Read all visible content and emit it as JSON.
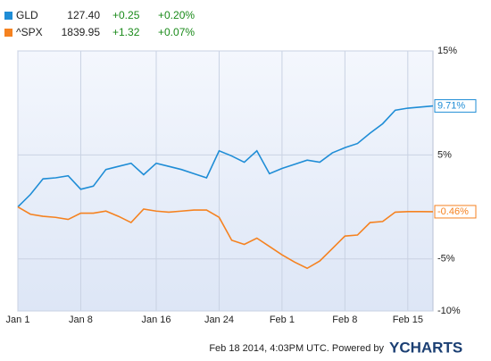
{
  "chart_data": {
    "type": "line",
    "legend": [
      {
        "price": "127.40",
        "change": "+0.25",
        "percent": "+0.20%"
      },
      {
        "price": "1839.95",
        "change": "+1.32",
        "percent": "+0.07%"
      }
    ],
    "categories": [
      "Jan 1",
      null,
      null,
      null,
      null,
      "Jan 8",
      null,
      null,
      null,
      null,
      null,
      "Jan 16",
      null,
      null,
      null,
      null,
      "Jan 24",
      null,
      null,
      null,
      null,
      "Feb 1",
      null,
      null,
      null,
      null,
      "Feb 8",
      null,
      null,
      null,
      null,
      "Feb 15",
      null,
      null
    ],
    "series": [
      {
        "name": "GLD",
        "color": "#1f8dd6",
        "values": [
          0,
          1.2,
          2.7,
          2.8,
          3.0,
          1.7,
          2.0,
          3.6,
          3.9,
          4.2,
          3.1,
          4.2,
          3.9,
          3.6,
          3.2,
          2.8,
          5.4,
          4.9,
          4.3,
          5.4,
          3.2,
          3.7,
          4.1,
          4.5,
          4.3,
          5.2,
          5.7,
          6.1,
          7.1,
          8.0,
          9.3,
          9.5,
          9.6,
          9.71
        ],
        "end_value": 9.71,
        "end_label": "9.71%"
      },
      {
        "name": "^SPX",
        "color": "#f58220",
        "values": [
          0,
          -0.7,
          -0.9,
          -1.0,
          -1.2,
          -0.6,
          -0.6,
          -0.4,
          -0.9,
          -1.5,
          -0.2,
          -0.4,
          -0.5,
          -0.4,
          -0.3,
          -0.3,
          -1.0,
          -3.2,
          -3.6,
          -3.0,
          -3.8,
          -4.6,
          -5.3,
          -5.9,
          -5.2,
          -4.0,
          -2.8,
          -2.7,
          -1.5,
          -1.4,
          -0.5,
          -0.45,
          -0.45,
          -0.46
        ],
        "end_value": -0.46,
        "end_label": "-0.46%"
      }
    ],
    "ylim": [
      -10,
      15
    ],
    "yticks": [
      {
        "value": 15,
        "label": "15%"
      },
      {
        "value": 5,
        "label": "5%"
      },
      {
        "value": -5,
        "label": "-5%"
      },
      {
        "value": -10,
        "label": "-10%"
      }
    ],
    "grid": true,
    "footer": "Feb 18 2014, 4:03PM UTC.  Powered by",
    "brand": "YCHARTS"
  }
}
